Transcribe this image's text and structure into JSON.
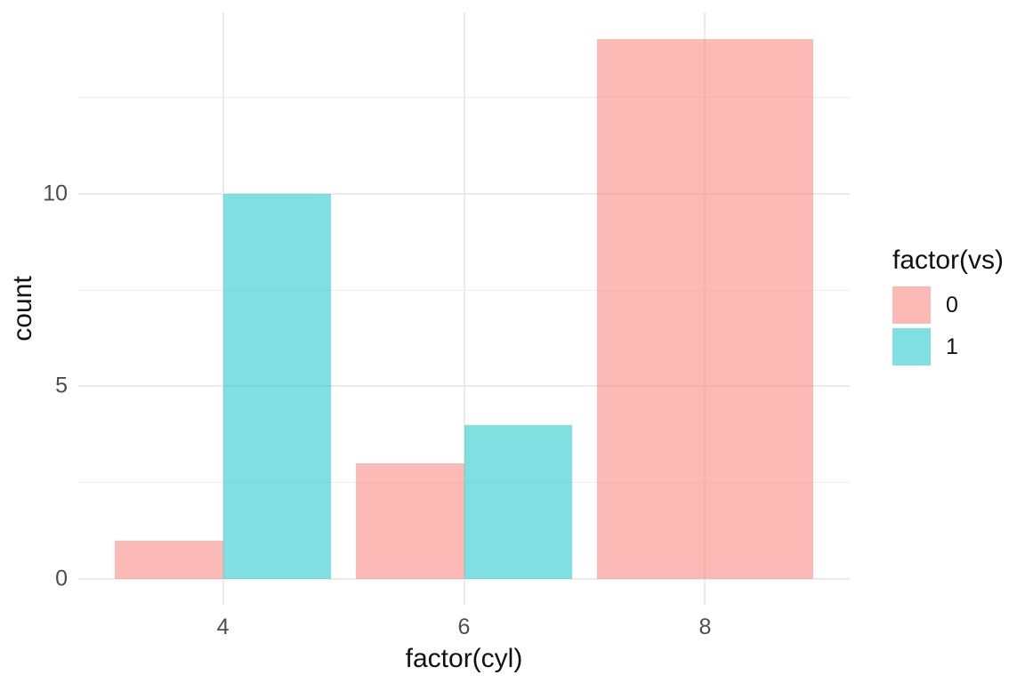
{
  "chart_data": {
    "type": "bar",
    "position": "dodge",
    "title": "",
    "xlabel": "factor(cyl)",
    "ylabel": "count",
    "categories": [
      "4",
      "6",
      "8"
    ],
    "series": [
      {
        "name": "0",
        "color": "#F8766D",
        "values": [
          1,
          3,
          14
        ]
      },
      {
        "name": "1",
        "color": "#00BFC4",
        "values": [
          10,
          4,
          0
        ]
      }
    ],
    "fill_alpha": 0.5,
    "legend": {
      "title": "factor(vs)",
      "position": "right",
      "labels": [
        "0",
        "1"
      ]
    },
    "y_axis": {
      "tick_labels": [
        "0",
        "5",
        "10"
      ],
      "major_ticks": [
        0,
        5,
        10
      ],
      "minor_ticks": [
        2.5,
        7.5,
        12.5
      ],
      "ylim": [
        0,
        14.7
      ]
    },
    "x_axis": {
      "tick_labels": [
        "4",
        "6",
        "8"
      ]
    },
    "grid": "major-and-minor",
    "theme": {
      "background": "#FFFFFF",
      "grid_major": "#EBEBEB",
      "grid_minor": "#EDEDED",
      "axis_text_color": "#4D4D4D",
      "title_color": "#111111"
    }
  }
}
